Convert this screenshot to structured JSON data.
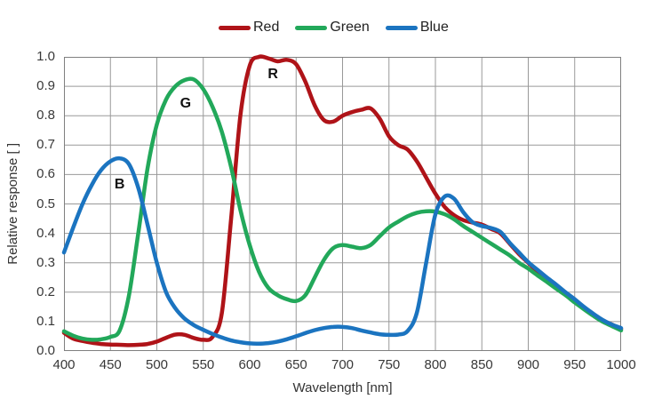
{
  "chart_data": {
    "type": "line",
    "xlabel": "Wavelength [nm]",
    "ylabel": "Relative response [ ]",
    "xlim": [
      400,
      1000
    ],
    "ylim": [
      0.0,
      1.0
    ],
    "x_ticks": [
      "400",
      "450",
      "500",
      "550",
      "600",
      "650",
      "700",
      "750",
      "800",
      "850",
      "900",
      "950",
      "1000"
    ],
    "y_ticks": [
      "0.0",
      "0.1",
      "0.2",
      "0.3",
      "0.4",
      "0.5",
      "0.6",
      "0.7",
      "0.8",
      "0.9",
      "1.0"
    ],
    "grid": true,
    "legend_position": "top",
    "x": [
      400,
      410,
      420,
      430,
      440,
      450,
      460,
      470,
      480,
      490,
      500,
      510,
      520,
      530,
      540,
      550,
      560,
      570,
      580,
      590,
      600,
      610,
      620,
      630,
      640,
      650,
      660,
      670,
      680,
      690,
      700,
      710,
      720,
      730,
      740,
      750,
      760,
      770,
      780,
      790,
      800,
      810,
      820,
      830,
      840,
      850,
      860,
      870,
      880,
      890,
      900,
      910,
      920,
      930,
      940,
      950,
      960,
      970,
      980,
      990,
      1000
    ],
    "series": [
      {
        "name": "Red",
        "color": "#AF1318",
        "annotation": {
          "text": "R",
          "x": 625,
          "y": 0.94
        },
        "values": [
          0.062,
          0.042,
          0.034,
          0.028,
          0.024,
          0.022,
          0.021,
          0.02,
          0.021,
          0.024,
          0.032,
          0.045,
          0.056,
          0.055,
          0.044,
          0.038,
          0.048,
          0.13,
          0.45,
          0.8,
          0.97,
          1.0,
          0.995,
          0.985,
          0.99,
          0.975,
          0.915,
          0.835,
          0.785,
          0.78,
          0.8,
          0.812,
          0.82,
          0.825,
          0.79,
          0.73,
          0.7,
          0.685,
          0.645,
          0.59,
          0.535,
          0.49,
          0.462,
          0.445,
          0.437,
          0.43,
          0.415,
          0.4,
          0.365,
          0.33,
          0.3,
          0.27,
          0.245,
          0.22,
          0.195,
          0.17,
          0.148,
          0.125,
          0.105,
          0.09,
          0.075
        ]
      },
      {
        "name": "Green",
        "color": "#22A85A",
        "annotation": {
          "text": "G",
          "x": 531,
          "y": 0.84
        },
        "values": [
          0.067,
          0.052,
          0.042,
          0.038,
          0.04,
          0.048,
          0.07,
          0.19,
          0.4,
          0.62,
          0.77,
          0.855,
          0.9,
          0.921,
          0.923,
          0.89,
          0.83,
          0.745,
          0.625,
          0.48,
          0.36,
          0.27,
          0.215,
          0.19,
          0.176,
          0.17,
          0.19,
          0.25,
          0.31,
          0.35,
          0.36,
          0.355,
          0.35,
          0.36,
          0.39,
          0.42,
          0.44,
          0.458,
          0.47,
          0.475,
          0.474,
          0.465,
          0.448,
          0.425,
          0.405,
          0.385,
          0.365,
          0.345,
          0.325,
          0.3,
          0.28,
          0.257,
          0.235,
          0.212,
          0.19,
          0.165,
          0.142,
          0.12,
          0.1,
          0.085,
          0.07
        ]
      },
      {
        "name": "Blue",
        "color": "#1B74C0",
        "annotation": {
          "text": "B",
          "x": 460,
          "y": 0.565
        },
        "values": [
          0.335,
          0.42,
          0.5,
          0.565,
          0.615,
          0.645,
          0.655,
          0.635,
          0.555,
          0.43,
          0.3,
          0.2,
          0.145,
          0.11,
          0.088,
          0.072,
          0.058,
          0.046,
          0.036,
          0.03,
          0.026,
          0.025,
          0.027,
          0.032,
          0.04,
          0.05,
          0.061,
          0.071,
          0.078,
          0.082,
          0.082,
          0.078,
          0.07,
          0.063,
          0.057,
          0.055,
          0.056,
          0.068,
          0.13,
          0.3,
          0.465,
          0.525,
          0.518,
          0.472,
          0.438,
          0.425,
          0.418,
          0.405,
          0.368,
          0.335,
          0.302,
          0.276,
          0.25,
          0.226,
          0.2,
          0.176,
          0.15,
          0.127,
          0.106,
          0.09,
          0.078
        ]
      }
    ],
    "colors": {
      "grid": "#999999",
      "plot_border": "#808080",
      "tick_text": "#383838",
      "axis_title_text": "#333333",
      "background": "#ffffff"
    }
  }
}
